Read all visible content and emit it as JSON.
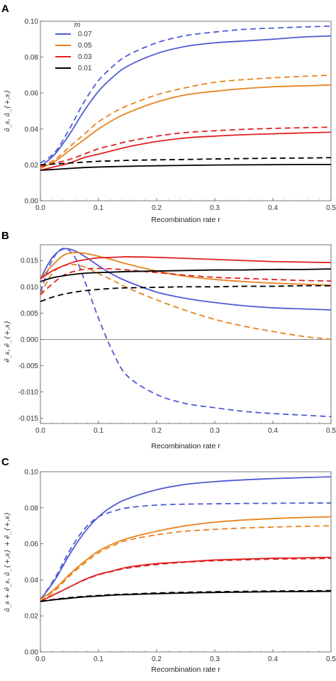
{
  "chart_data": [
    {
      "type": "line",
      "panel_label": "A",
      "xlabel": "Recombination rate r",
      "ylabel": "ā_s, ā_{+,s}",
      "xlim": [
        0,
        0.5
      ],
      "ylim": [
        0,
        0.1
      ],
      "xticks": [
        "0.0",
        "0.1",
        "0.2",
        "0.3",
        "0.4",
        "0.5"
      ],
      "yticks": [
        "0.00",
        "0.02",
        "0.04",
        "0.06",
        "0.08",
        "0.10"
      ],
      "legend": {
        "title": "m",
        "placement": "top-left",
        "entries": [
          "0.07",
          "0.05",
          "0.03",
          "0.01"
        ]
      },
      "x": [
        0.0,
        0.025,
        0.05,
        0.075,
        0.1,
        0.125,
        0.15,
        0.2,
        0.25,
        0.3,
        0.35,
        0.4,
        0.45,
        0.5
      ],
      "series": [
        {
          "name": "0.07",
          "color": "#4f5bd5",
          "style": "solid",
          "values": [
            0.019,
            0.026,
            0.037,
            0.05,
            0.061,
            0.069,
            0.075,
            0.082,
            0.086,
            0.088,
            0.089,
            0.09,
            0.0912,
            0.0918
          ]
        },
        {
          "name": "0.07",
          "color": "#4f5bd5",
          "style": "dashed",
          "values": [
            0.021,
            0.027,
            0.04,
            0.055,
            0.067,
            0.075,
            0.081,
            0.088,
            0.092,
            0.094,
            0.0955,
            0.0962,
            0.0968,
            0.0973
          ]
        },
        {
          "name": "0.05",
          "color": "#e8821e",
          "style": "solid",
          "values": [
            0.018,
            0.022,
            0.028,
            0.034,
            0.04,
            0.045,
            0.049,
            0.055,
            0.059,
            0.061,
            0.0625,
            0.0635,
            0.064,
            0.0645
          ]
        },
        {
          "name": "0.05",
          "color": "#e8821e",
          "style": "dashed",
          "values": [
            0.019,
            0.023,
            0.03,
            0.037,
            0.044,
            0.049,
            0.053,
            0.059,
            0.063,
            0.066,
            0.0675,
            0.0685,
            0.0693,
            0.07
          ]
        },
        {
          "name": "0.03",
          "color": "#e02020",
          "style": "solid",
          "values": [
            0.017,
            0.019,
            0.021,
            0.024,
            0.026,
            0.028,
            0.03,
            0.033,
            0.035,
            0.036,
            0.0368,
            0.0373,
            0.0378,
            0.0382
          ]
        },
        {
          "name": "0.03",
          "color": "#e02020",
          "style": "dashed",
          "values": [
            0.019,
            0.021,
            0.023,
            0.026,
            0.029,
            0.031,
            0.033,
            0.036,
            0.038,
            0.039,
            0.0398,
            0.0403,
            0.0407,
            0.041
          ]
        },
        {
          "name": "0.01",
          "color": "#000000",
          "style": "solid",
          "values": [
            0.017,
            0.0175,
            0.018,
            0.0185,
            0.0188,
            0.019,
            0.0192,
            0.0195,
            0.0197,
            0.0199,
            0.02,
            0.0201,
            0.0202,
            0.0202
          ]
        },
        {
          "name": "0.01",
          "color": "#000000",
          "style": "dashed",
          "values": [
            0.02,
            0.0205,
            0.021,
            0.0215,
            0.022,
            0.0222,
            0.0225,
            0.0228,
            0.023,
            0.0233,
            0.0235,
            0.0237,
            0.0238,
            0.024
          ]
        }
      ]
    },
    {
      "type": "line",
      "panel_label": "B",
      "xlabel": "Recombination rate r",
      "ylabel": "ē_s, ē_{+,s}",
      "xlim": [
        0,
        0.5
      ],
      "ylim": [
        -0.016,
        0.018
      ],
      "xticks": [
        "0.0",
        "0.1",
        "0.2",
        "0.3",
        "0.4",
        "0.5"
      ],
      "yticks": [
        "-0.015",
        "-0.010",
        "-0.005",
        "0.000",
        "0.005",
        "0.010",
        "0.015"
      ],
      "zero_line": true,
      "x": [
        0.0,
        0.02,
        0.04,
        0.06,
        0.08,
        0.1,
        0.125,
        0.15,
        0.2,
        0.25,
        0.3,
        0.35,
        0.4,
        0.45,
        0.5
      ],
      "series": [
        {
          "name": "0.07",
          "color": "#4f5bd5",
          "style": "solid",
          "values": [
            0.0115,
            0.0155,
            0.0172,
            0.0168,
            0.0155,
            0.014,
            0.0123,
            0.011,
            0.009,
            0.0078,
            0.007,
            0.0064,
            0.006,
            0.0058,
            0.0056
          ]
        },
        {
          "name": "0.07",
          "color": "#4f5bd5",
          "style": "dashed",
          "values": [
            0.009,
            0.015,
            0.0173,
            0.0155,
            0.01,
            0.004,
            -0.0025,
            -0.007,
            -0.0105,
            -0.0122,
            -0.013,
            -0.0137,
            -0.0141,
            -0.0144,
            -0.0147
          ]
        },
        {
          "name": "0.05",
          "color": "#e8821e",
          "style": "solid",
          "values": [
            0.0115,
            0.014,
            0.016,
            0.0165,
            0.0163,
            0.0158,
            0.0151,
            0.0143,
            0.013,
            0.012,
            0.0114,
            0.011,
            0.0107,
            0.0105,
            0.0103
          ]
        },
        {
          "name": "0.05",
          "color": "#e8821e",
          "style": "dashed",
          "values": [
            0.0085,
            0.0125,
            0.014,
            0.0142,
            0.0136,
            0.0125,
            0.0112,
            0.0098,
            0.0075,
            0.0055,
            0.0038,
            0.0025,
            0.0015,
            0.0006,
            0.0
          ]
        },
        {
          "name": "0.03",
          "color": "#e02020",
          "style": "solid",
          "values": [
            0.0115,
            0.013,
            0.014,
            0.0148,
            0.0152,
            0.0155,
            0.0156,
            0.0157,
            0.0156,
            0.0154,
            0.0152,
            0.015,
            0.0148,
            0.0147,
            0.0146
          ]
        },
        {
          "name": "0.03",
          "color": "#e02020",
          "style": "dashed",
          "values": [
            0.0085,
            0.0105,
            0.0122,
            0.013,
            0.0134,
            0.0135,
            0.0134,
            0.0132,
            0.0127,
            0.0122,
            0.0118,
            0.0116,
            0.0114,
            0.0112,
            0.0111
          ]
        },
        {
          "name": "0.01",
          "color": "#000000",
          "style": "solid",
          "values": [
            0.011,
            0.0117,
            0.0121,
            0.0124,
            0.0126,
            0.0127,
            0.0128,
            0.0129,
            0.013,
            0.0131,
            0.0132,
            0.0132,
            0.0133,
            0.0133,
            0.0134
          ]
        },
        {
          "name": "0.01",
          "color": "#000000",
          "style": "dashed",
          "values": [
            0.0072,
            0.008,
            0.0086,
            0.009,
            0.0093,
            0.0095,
            0.0097,
            0.0098,
            0.0099,
            0.01,
            0.01,
            0.0101,
            0.0101,
            0.0102,
            0.0102
          ]
        }
      ]
    },
    {
      "type": "line",
      "panel_label": "C",
      "xlabel": "Recombination rate r",
      "ylabel": "ā_s + ē_s, ā_{+,s} + ē_{+,s}",
      "xlim": [
        0,
        0.5
      ],
      "ylim": [
        0,
        0.1
      ],
      "xticks": [
        "0.0",
        "0.1",
        "0.2",
        "0.3",
        "0.4",
        "0.5"
      ],
      "yticks": [
        "0.00",
        "0.02",
        "0.04",
        "0.06",
        "0.08",
        "0.10"
      ],
      "x": [
        0.0,
        0.025,
        0.05,
        0.075,
        0.1,
        0.125,
        0.15,
        0.2,
        0.25,
        0.3,
        0.35,
        0.4,
        0.45,
        0.5
      ],
      "series": [
        {
          "name": "0.07",
          "color": "#4f5bd5",
          "style": "solid",
          "values": [
            0.029,
            0.04,
            0.054,
            0.066,
            0.075,
            0.081,
            0.085,
            0.09,
            0.093,
            0.0945,
            0.0955,
            0.0962,
            0.0967,
            0.0972
          ]
        },
        {
          "name": "0.07",
          "color": "#4f5bd5",
          "style": "dashed",
          "values": [
            0.029,
            0.041,
            0.056,
            0.068,
            0.075,
            0.078,
            0.08,
            0.0815,
            0.082,
            0.0822,
            0.0824,
            0.0825,
            0.0826,
            0.0826
          ]
        },
        {
          "name": "0.05",
          "color": "#e8821e",
          "style": "solid",
          "values": [
            0.029,
            0.035,
            0.043,
            0.05,
            0.056,
            0.06,
            0.063,
            0.067,
            0.07,
            0.072,
            0.0732,
            0.074,
            0.0746,
            0.075
          ]
        },
        {
          "name": "0.05",
          "color": "#e8821e",
          "style": "dashed",
          "values": [
            0.028,
            0.034,
            0.042,
            0.049,
            0.055,
            0.059,
            0.062,
            0.065,
            0.067,
            0.068,
            0.0688,
            0.0693,
            0.0697,
            0.07
          ]
        },
        {
          "name": "0.03",
          "color": "#e02020",
          "style": "solid",
          "values": [
            0.028,
            0.032,
            0.036,
            0.04,
            0.043,
            0.045,
            0.047,
            0.049,
            0.05,
            0.051,
            0.0515,
            0.052,
            0.0522,
            0.0525
          ]
        },
        {
          "name": "0.03",
          "color": "#e02020",
          "style": "dashed",
          "values": [
            0.028,
            0.032,
            0.036,
            0.0398,
            0.0428,
            0.0448,
            0.0465,
            0.0485,
            0.0498,
            0.0506,
            0.0511,
            0.0515,
            0.0517,
            0.0519
          ]
        },
        {
          "name": "0.01",
          "color": "#000000",
          "style": "solid",
          "values": [
            0.028,
            0.029,
            0.0298,
            0.0305,
            0.031,
            0.0315,
            0.0318,
            0.0323,
            0.0327,
            0.033,
            0.0332,
            0.0334,
            0.0335,
            0.0336
          ]
        },
        {
          "name": "0.01",
          "color": "#000000",
          "style": "dashed",
          "values": [
            0.028,
            0.0292,
            0.0301,
            0.0308,
            0.0313,
            0.0318,
            0.0321,
            0.0327,
            0.0331,
            0.0334,
            0.0336,
            0.0338,
            0.0339,
            0.034
          ]
        }
      ]
    }
  ]
}
